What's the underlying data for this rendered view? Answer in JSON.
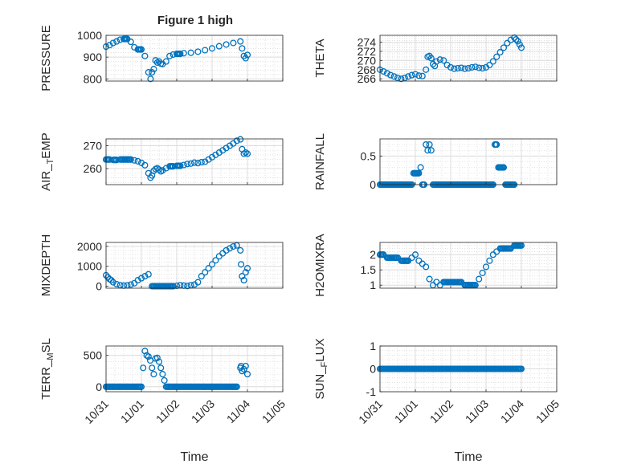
{
  "figure": {
    "title": "Figure 1 high",
    "marker_color": "#0072BD",
    "xlabel": "Time",
    "x_ticks": [
      "10/31",
      "11/01",
      "11/02",
      "11/03",
      "11/04",
      "11/05"
    ]
  },
  "chart_data": [
    {
      "type": "scatter",
      "id": "pressure",
      "ylabel": "PRESSURE",
      "ylim": [
        790,
        1000
      ],
      "yticks": [
        "800",
        "900",
        "1000"
      ],
      "x": [
        0.0,
        0.1,
        0.2,
        0.3,
        0.4,
        0.5,
        0.6,
        0.7,
        0.8,
        0.9,
        1.0,
        1.1,
        1.2,
        1.26,
        1.3,
        1.35,
        1.4,
        1.45,
        1.5,
        1.55,
        1.6,
        1.7,
        1.8,
        1.9,
        2.0,
        2.1,
        2.2,
        2.4,
        2.6,
        2.8,
        3.0,
        3.2,
        3.4,
        3.6,
        3.8,
        3.85,
        3.9,
        3.95,
        4.0
      ],
      "y": [
        948,
        955,
        965,
        972,
        980,
        983,
        983,
        970,
        945,
        935,
        935,
        905,
        830,
        800,
        830,
        845,
        885,
        875,
        880,
        870,
        868,
        880,
        905,
        912,
        915,
        915,
        918,
        920,
        925,
        932,
        940,
        950,
        958,
        965,
        972,
        940,
        905,
        895,
        910
      ]
    },
    {
      "type": "scatter",
      "id": "theta",
      "ylabel": "THETA",
      "ylim": [
        265.5,
        275.5
      ],
      "yticks": [
        "266",
        "268",
        "270",
        "272",
        "274"
      ],
      "x": [
        0.0,
        0.1,
        0.2,
        0.3,
        0.4,
        0.5,
        0.6,
        0.7,
        0.8,
        0.9,
        1.0,
        1.1,
        1.2,
        1.3,
        1.35,
        1.4,
        1.45,
        1.5,
        1.55,
        1.6,
        1.7,
        1.8,
        1.9,
        2.0,
        2.1,
        2.2,
        2.3,
        2.4,
        2.5,
        2.6,
        2.7,
        2.8,
        2.9,
        3.0,
        3.1,
        3.2,
        3.3,
        3.4,
        3.5,
        3.6,
        3.7,
        3.8,
        3.85,
        3.9,
        3.95,
        4.0
      ],
      "y": [
        268,
        267.6,
        267.2,
        266.8,
        266.5,
        266.2,
        266,
        266.2,
        266.5,
        266.8,
        267,
        266.7,
        266.6,
        268,
        270.8,
        271,
        270.5,
        269.2,
        268.8,
        269.8,
        270.2,
        270,
        269,
        268.5,
        268.2,
        268.3,
        268.4,
        268.2,
        268.3,
        268.5,
        268.6,
        268.4,
        268.3,
        268.5,
        269,
        269.8,
        270.8,
        271.8,
        272.8,
        273.8,
        274.5,
        275,
        274.6,
        274.2,
        273.5,
        272.8
      ]
    },
    {
      "type": "scatter",
      "id": "air_temp",
      "ylabel": "AIR_TEMP",
      "ylim": [
        253,
        273
      ],
      "yticks": [
        "260",
        "270"
      ],
      "x": [
        0.0,
        0.1,
        0.2,
        0.3,
        0.4,
        0.5,
        0.6,
        0.7,
        0.8,
        0.9,
        1.0,
        1.1,
        1.2,
        1.26,
        1.3,
        1.35,
        1.4,
        1.45,
        1.5,
        1.55,
        1.6,
        1.7,
        1.8,
        1.9,
        2.0,
        2.1,
        2.2,
        2.3,
        2.4,
        2.5,
        2.6,
        2.7,
        2.8,
        2.9,
        3.0,
        3.1,
        3.2,
        3.3,
        3.4,
        3.5,
        3.6,
        3.7,
        3.8,
        3.85,
        3.9,
        3.95,
        4.0
      ],
      "y": [
        264,
        264,
        263.8,
        263.8,
        264,
        264,
        264,
        264,
        263.6,
        263.2,
        262.5,
        261.5,
        258,
        256,
        257,
        259,
        259.8,
        260.2,
        259.6,
        258.8,
        259.2,
        260.2,
        261,
        261,
        261.2,
        261.2,
        261.6,
        262,
        262.2,
        262.6,
        262.4,
        262.8,
        263,
        264,
        265,
        266,
        267,
        268,
        269,
        270,
        271,
        272.2,
        272.8,
        268.5,
        266.5,
        267,
        266.5
      ]
    },
    {
      "type": "scatter",
      "id": "rainfall",
      "ylabel": "RAINFALL",
      "ylim": [
        0,
        0.8
      ],
      "yticks": [
        "0",
        "0.5"
      ],
      "x": [
        0.0,
        0.2,
        0.4,
        0.6,
        0.8,
        0.9,
        0.95,
        1.0,
        1.05,
        1.1,
        1.15,
        1.2,
        1.25,
        1.3,
        1.35,
        1.4,
        1.45,
        1.5,
        1.6,
        1.8,
        2.0,
        2.2,
        2.4,
        2.6,
        2.8,
        3.0,
        3.1,
        3.2,
        3.25,
        3.3,
        3.35,
        3.4,
        3.45,
        3.5,
        3.55,
        3.6,
        3.7,
        3.8
      ],
      "y": [
        0,
        0,
        0,
        0,
        0,
        0,
        0.2,
        0.2,
        0.2,
        0.2,
        0.3,
        0,
        0,
        0.7,
        0.6,
        0.7,
        0.6,
        0,
        0,
        0,
        0,
        0,
        0,
        0,
        0,
        0,
        0,
        0,
        0.7,
        0.7,
        0.3,
        0.3,
        0.3,
        0.3,
        0,
        0,
        0,
        0
      ]
    },
    {
      "type": "scatter",
      "id": "mixdepth",
      "ylabel": "MIXDEPTH",
      "ylim": [
        -100,
        2200
      ],
      "yticks": [
        "0",
        "1000",
        "2000"
      ],
      "x": [
        0.0,
        0.05,
        0.1,
        0.15,
        0.2,
        0.3,
        0.4,
        0.5,
        0.6,
        0.7,
        0.8,
        0.9,
        1.0,
        1.1,
        1.2,
        1.3,
        1.4,
        1.5,
        1.6,
        1.7,
        1.8,
        1.9,
        2.0,
        2.1,
        2.2,
        2.3,
        2.4,
        2.5,
        2.6,
        2.7,
        2.8,
        2.9,
        3.0,
        3.1,
        3.2,
        3.3,
        3.4,
        3.5,
        3.6,
        3.7,
        3.8,
        3.82,
        3.85,
        3.9,
        3.95,
        4.0
      ],
      "y": [
        550,
        450,
        350,
        300,
        200,
        100,
        50,
        30,
        40,
        80,
        150,
        300,
        400,
        500,
        600,
        0,
        0,
        0,
        0,
        0,
        0,
        0,
        20,
        50,
        30,
        10,
        50,
        80,
        200,
        500,
        700,
        900,
        1100,
        1300,
        1500,
        1650,
        1800,
        1900,
        2000,
        2050,
        1800,
        1100,
        500,
        300,
        700,
        900
      ]
    },
    {
      "type": "scatter",
      "id": "h2omixra",
      "ylabel": "H2OMIXRA",
      "ylim": [
        0.9,
        2.4
      ],
      "yticks": [
        "1",
        "1.5",
        "2"
      ],
      "x": [
        0.0,
        0.1,
        0.2,
        0.3,
        0.4,
        0.5,
        0.6,
        0.7,
        0.8,
        0.9,
        1.0,
        1.1,
        1.2,
        1.3,
        1.4,
        1.5,
        1.6,
        1.7,
        1.8,
        1.9,
        2.0,
        2.1,
        2.2,
        2.3,
        2.4,
        2.5,
        2.6,
        2.7,
        2.8,
        2.9,
        3.0,
        3.1,
        3.2,
        3.3,
        3.4,
        3.5,
        3.6,
        3.7,
        3.8,
        3.85,
        3.9,
        4.0
      ],
      "y": [
        2,
        2,
        1.9,
        1.9,
        1.9,
        1.9,
        1.8,
        1.8,
        1.8,
        1.9,
        2,
        1.8,
        1.7,
        1.6,
        1.2,
        1,
        1.1,
        1,
        1.1,
        1.1,
        1.1,
        1.1,
        1.1,
        1.1,
        1,
        1,
        1,
        1,
        1.2,
        1.4,
        1.6,
        1.8,
        2,
        2.1,
        2.2,
        2.2,
        2.2,
        2.2,
        2.3,
        2.3,
        2.3,
        2.3
      ]
    },
    {
      "type": "scatter",
      "id": "terr_msl",
      "ylabel": "TERR_MSL",
      "ylim": [
        -80,
        650
      ],
      "yticks": [
        "0",
        "500"
      ],
      "x": [
        0.0,
        0.2,
        0.4,
        0.6,
        0.8,
        0.9,
        1.0,
        1.05,
        1.1,
        1.15,
        1.2,
        1.25,
        1.3,
        1.35,
        1.4,
        1.45,
        1.5,
        1.55,
        1.6,
        1.65,
        1.7,
        1.8,
        2.0,
        2.2,
        2.4,
        2.6,
        2.8,
        3.0,
        3.2,
        3.4,
        3.6,
        3.7,
        3.8,
        3.82,
        3.85,
        3.9,
        3.95,
        4.0
      ],
      "y": [
        0,
        0,
        0,
        0,
        0,
        0,
        0,
        300,
        570,
        500,
        480,
        420,
        300,
        200,
        450,
        460,
        400,
        300,
        200,
        100,
        0,
        0,
        0,
        0,
        0,
        0,
        0,
        0,
        0,
        0,
        0,
        0,
        300,
        330,
        250,
        280,
        330,
        200
      ]
    },
    {
      "type": "scatter",
      "id": "sun_flux",
      "ylabel": "SUN_FLUX",
      "ylim": [
        -1,
        1
      ],
      "yticks": [
        "-1",
        "0",
        "1"
      ],
      "x": [
        0.0,
        0.5,
        1.0,
        1.5,
        2.0,
        2.5,
        3.0,
        3.5,
        4.0
      ],
      "y": [
        0,
        0,
        0,
        0,
        0,
        0,
        0,
        0,
        0
      ]
    }
  ]
}
